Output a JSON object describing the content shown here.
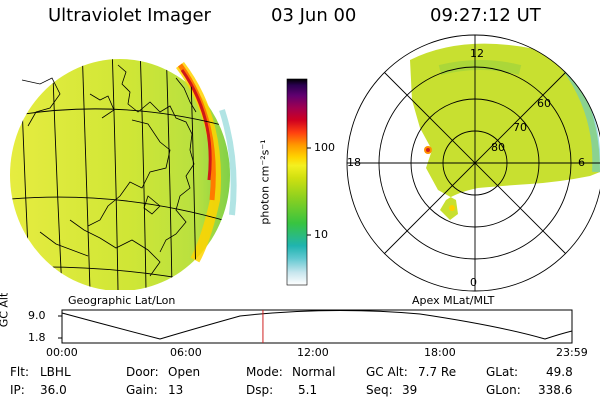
{
  "header": {
    "instrument": "Ultraviolet Imager",
    "date": "03 Jun 00",
    "time": "09:27:12 UT"
  },
  "colorbar": {
    "label": "photon cm⁻²s⁻¹",
    "ticks": [
      {
        "value": 100,
        "label": "100"
      },
      {
        "value": 10,
        "label": "10"
      }
    ],
    "colors": [
      "#ffffff",
      "#d0e8f0",
      "#40c0c8",
      "#20b8b0",
      "#40c840",
      "#80d020",
      "#c8e010",
      "#f0f020",
      "#ffd000",
      "#ff9000",
      "#ff3000",
      "#d00020",
      "#a00060",
      "#600080",
      "#200060",
      "#000000"
    ]
  },
  "panels": {
    "left_caption": "Geographic Lat/Lon",
    "right_caption": "Apex MLat/MLT",
    "polar_lat_labels": [
      "60",
      "70",
      "80"
    ],
    "polar_mlt_labels": {
      "top": "12",
      "left": "18",
      "right": "6",
      "bottom": "0"
    }
  },
  "altitude_plot": {
    "ylabel": "GC Alt",
    "yticks": [
      "9.0",
      "1.8"
    ],
    "xticks": [
      "00:00",
      "06:00",
      "12:00",
      "18:00",
      "23:59"
    ],
    "current_time_fraction": 0.394
  },
  "info": {
    "flt_label": "Flt:",
    "flt_value": "LBHL",
    "ip_label": "IP:",
    "ip_value": "36.0",
    "door_label": "Door:",
    "door_value": "Open",
    "gain_label": "Gain:",
    "gain_value": "13",
    "mode_label": "Mode:",
    "mode_value": "Normal",
    "dsp_label": "Dsp:",
    "dsp_value": "5.1",
    "gcalt_label": "GC Alt:",
    "gcalt_value": "7.7 Re",
    "seq_label": "Seq:",
    "seq_value": "39",
    "glat_label": "GLat:",
    "glat_value": "49.8",
    "glon_label": "GLon:",
    "glon_value": "338.6"
  },
  "colors": {
    "polar_fill": "#c8e030",
    "earth_fill": "#d4e838",
    "limb_red": "#d01818",
    "marker": "#d02020"
  }
}
